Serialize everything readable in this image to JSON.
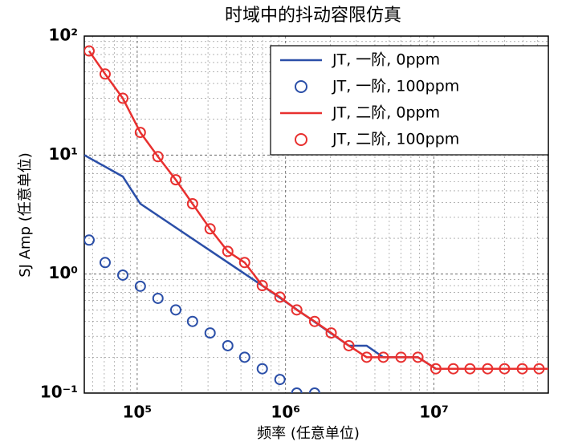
{
  "chart_data": {
    "type": "line",
    "title": "时域中的抖动容限仿真",
    "x_label": "频率 (任意单位)",
    "y_label": "SJ Amp (任意单位)",
    "xscale": "log",
    "yscale": "log",
    "grid": true,
    "minor_grid": true,
    "legend": "upper right",
    "xlim": [
      44000,
      59000000
    ],
    "ylim": [
      0.1,
      100
    ],
    "xticks": [
      {
        "value": 100000,
        "label": "10⁵"
      },
      {
        "value": 1000000,
        "label": "10⁶"
      },
      {
        "value": 10000000,
        "label": "10⁷"
      }
    ],
    "yticks": [
      {
        "value": 0.1,
        "label": "10⁻¹"
      },
      {
        "value": 1,
        "label": "10⁰"
      },
      {
        "value": 10,
        "label": "10¹"
      },
      {
        "value": 100,
        "label": "10²"
      }
    ],
    "series": [
      {
        "name": "JT, 一阶, 0ppm",
        "color": "#2b4fa8",
        "style": "line",
        "x": [
          44000,
          80000,
          105000,
          697000,
          2670000,
          3520000,
          4560000,
          7800000,
          10300000,
          59000000
        ],
        "values": [
          10,
          6.6,
          3.9,
          0.8,
          0.25,
          0.25,
          0.2,
          0.2,
          0.16,
          0.16
        ]
      },
      {
        "name": "JT, 一阶, 100ppm",
        "color": "#2b4fa8",
        "style": "circle",
        "x": [
          47400,
          60800,
          80000,
          105000,
          138000,
          182000,
          236000,
          310000,
          408000,
          530000,
          697000,
          916000,
          1190000,
          1570000
        ],
        "values": [
          1.93,
          1.25,
          0.98,
          0.79,
          0.625,
          0.5,
          0.4,
          0.32,
          0.25,
          0.2,
          0.16,
          0.13,
          0.1,
          0.1
        ]
      },
      {
        "name": "JT, 二阶, 0ppm",
        "color": "#e8302f",
        "style": "line",
        "x": [
          47400,
          60800,
          80000,
          105000,
          138000,
          182000,
          236000,
          310000,
          408000,
          530000,
          697000,
          916000,
          1190000,
          1570000,
          2030000,
          2670000,
          3520000,
          4560000,
          6000000,
          7800000,
          10300000,
          59000000
        ],
        "values": [
          75,
          48,
          30,
          15.5,
          9.7,
          6.2,
          3.9,
          2.4,
          1.55,
          1.25,
          0.8,
          0.64,
          0.5,
          0.4,
          0.32,
          0.25,
          0.2,
          0.2,
          0.2,
          0.2,
          0.16,
          0.16
        ]
      },
      {
        "name": "JT, 二阶, 100ppm",
        "color": "#e8302f",
        "style": "circle",
        "x": [
          47400,
          60800,
          80000,
          105000,
          138000,
          182000,
          236000,
          310000,
          408000,
          530000,
          697000,
          916000,
          1190000,
          1570000,
          2030000,
          2670000,
          3520000,
          4560000,
          6000000,
          7800000,
          10300000,
          13500000,
          17500000,
          23000000,
          29900000,
          39400000,
          51100000
        ],
        "values": [
          75,
          48,
          30,
          15.5,
          9.7,
          6.2,
          3.9,
          2.4,
          1.55,
          1.25,
          0.8,
          0.64,
          0.5,
          0.4,
          0.32,
          0.25,
          0.2,
          0.2,
          0.2,
          0.2,
          0.16,
          0.16,
          0.16,
          0.16,
          0.16,
          0.16,
          0.16
        ]
      }
    ]
  }
}
